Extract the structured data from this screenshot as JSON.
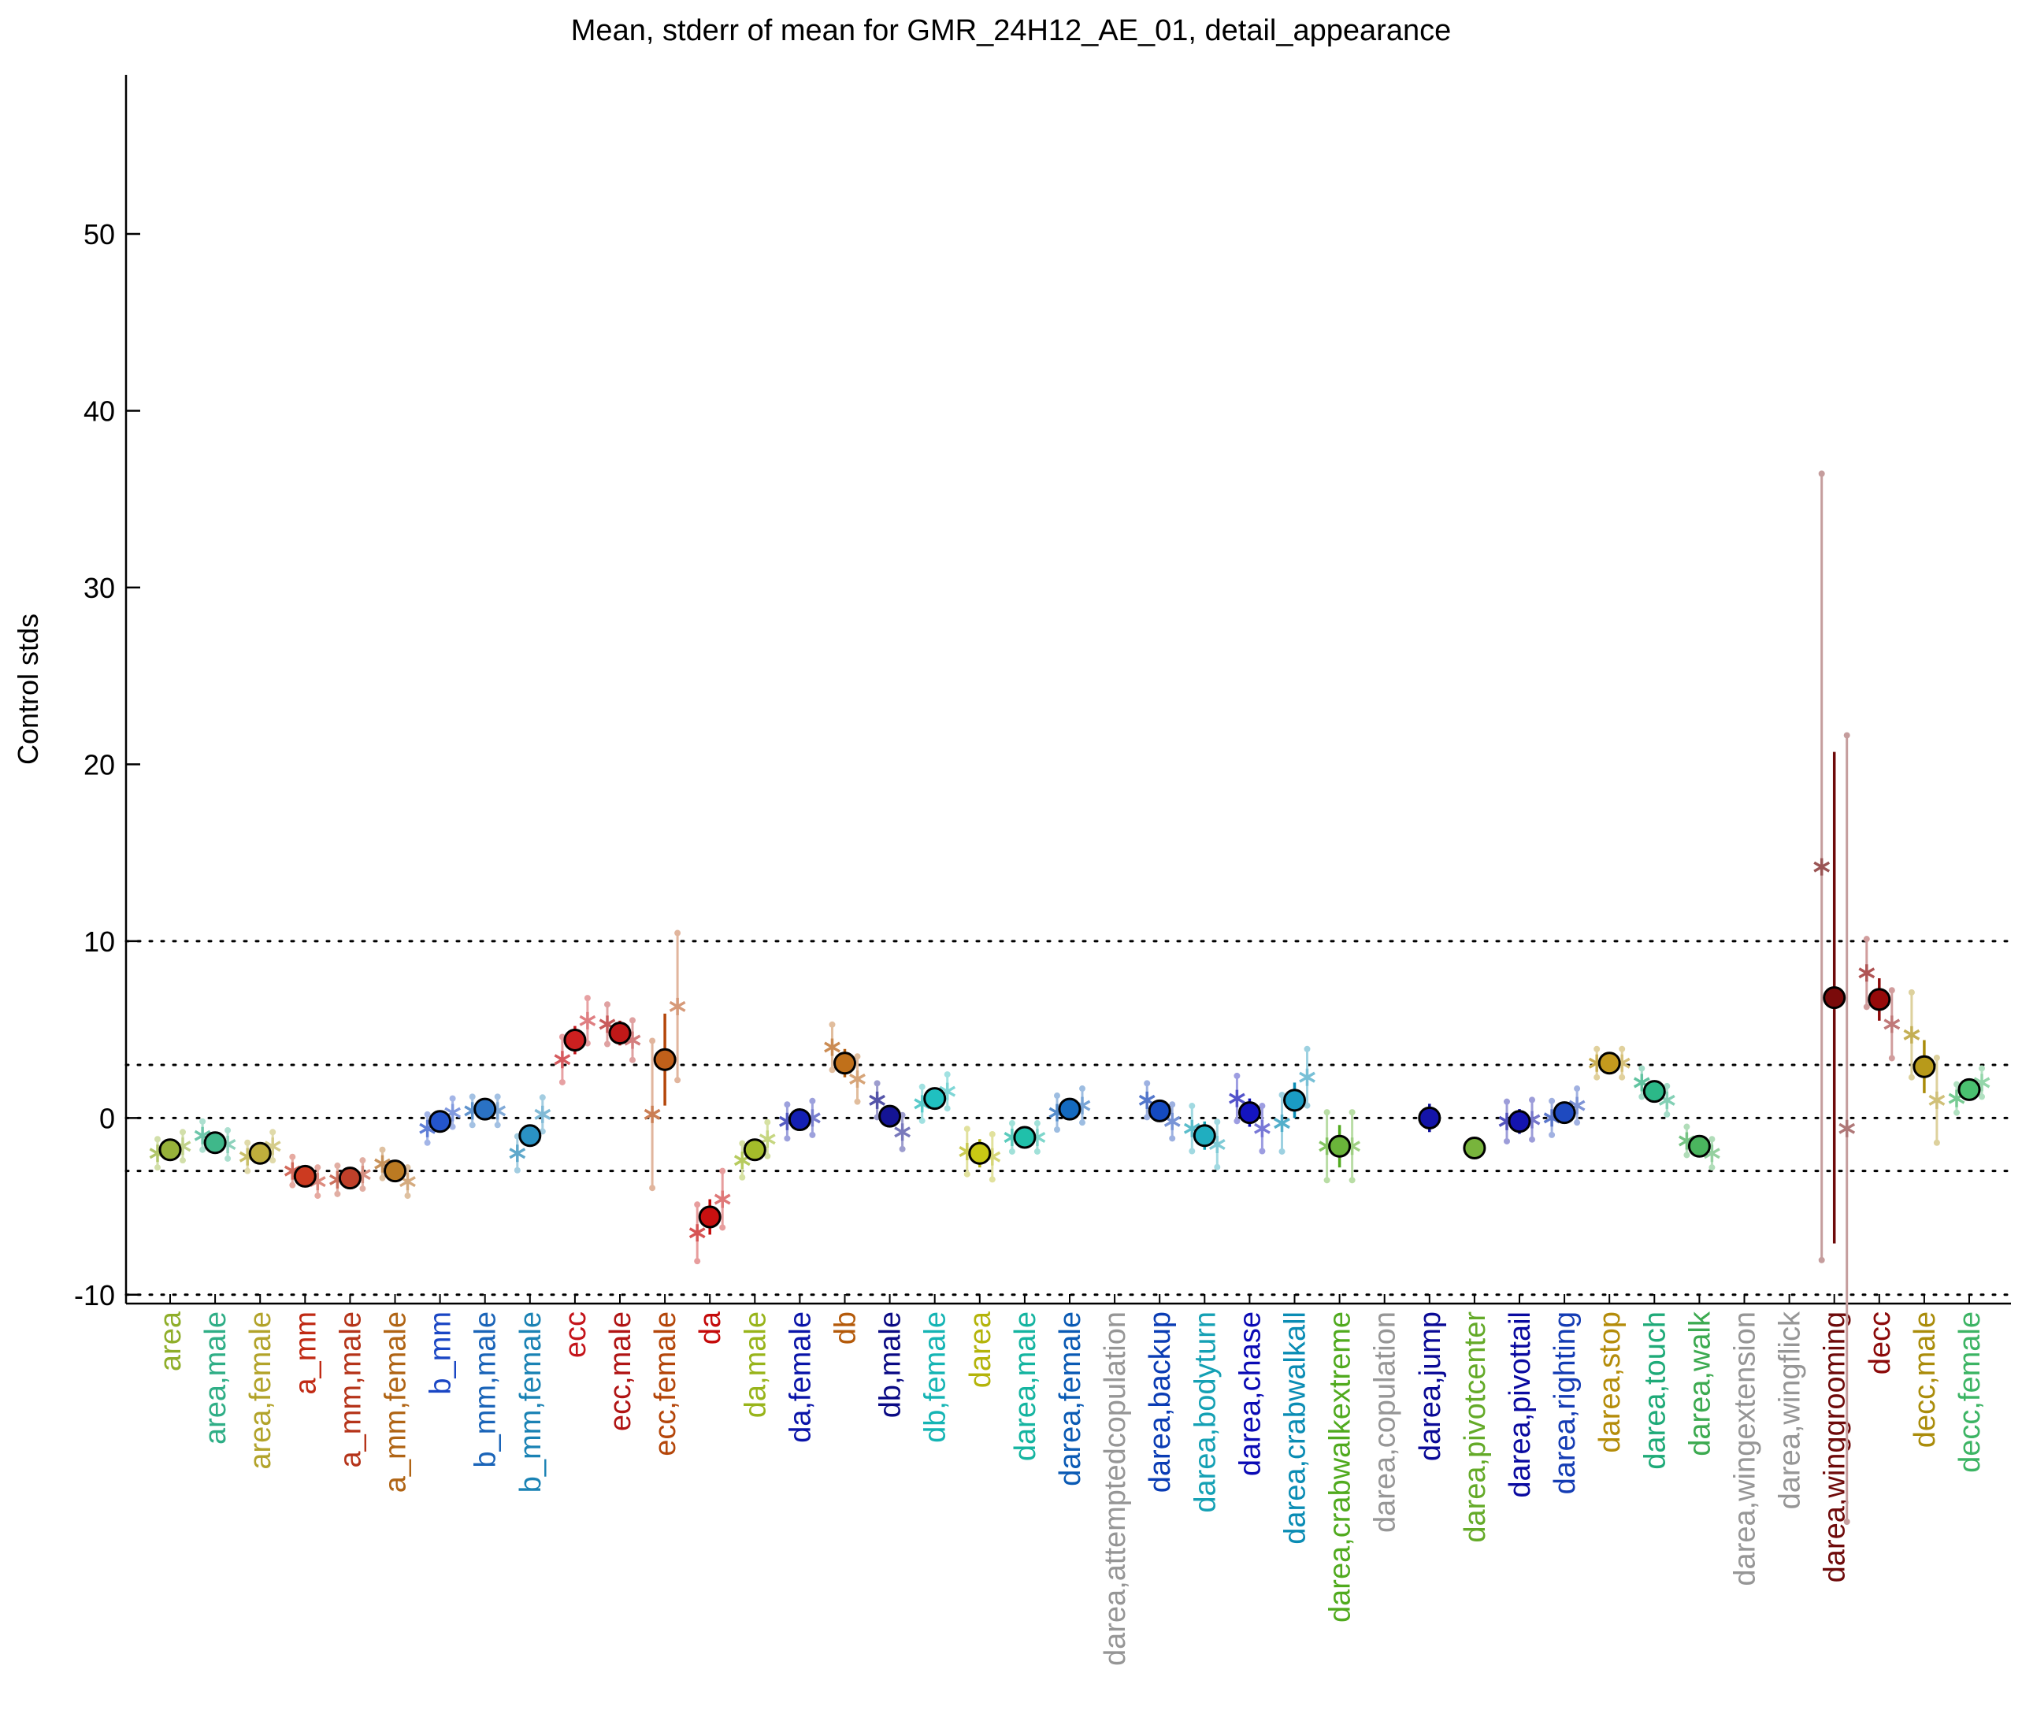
{
  "chart_data": {
    "type": "scatter",
    "title": "Mean, stderr of mean for GMR_24H12_AE_01, detail_appearance",
    "xlabel": "",
    "ylabel": "Control stds",
    "ylim": [
      -10.5,
      59
    ],
    "yticks": [
      -10,
      0,
      10,
      20,
      30,
      40,
      50
    ],
    "reference_lines": [
      -10,
      -3,
      0,
      3,
      10
    ],
    "grid": false,
    "categories": [
      {
        "label": "area",
        "color": "#8fae2a",
        "mean": -1.8,
        "se": 0.4,
        "fill": "#97b13a",
        "male": -2.0,
        "female": -1.6
      },
      {
        "label": "area,male",
        "color": "#2fae86",
        "mean": -1.4,
        "se": 0.5,
        "fill": "#3fb88a",
        "male": -1.0,
        "female": -1.5
      },
      {
        "label": "area,female",
        "color": "#b2a32a",
        "mean": -2.0,
        "se": 0.4,
        "fill": "#bfae3c",
        "male": -2.2,
        "female": -1.6
      },
      {
        "label": "a_mm",
        "color": "#c02a14",
        "mean": -3.3,
        "se": 0.4,
        "fill": "#cc3a20",
        "male": -3.0,
        "female": -3.6
      },
      {
        "label": "a_mm,male",
        "color": "#b5341a",
        "mean": -3.4,
        "se": 0.5,
        "fill": "#c0402a",
        "male": -3.5,
        "female": -3.2
      },
      {
        "label": "a_mm,female",
        "color": "#b06414",
        "mean": -3.0,
        "se": 0.4,
        "fill": "#bb7a22",
        "male": -2.6,
        "female": -3.6
      },
      {
        "label": "b_mm",
        "color": "#1a46c4",
        "mean": -0.2,
        "se": 0.5,
        "fill": "#2455cc",
        "male": -0.6,
        "female": 0.3
      },
      {
        "label": "b_mm,male",
        "color": "#1a64b8",
        "mean": 0.5,
        "se": 0.5,
        "fill": "#2a72c4",
        "male": 0.4,
        "female": 0.4
      },
      {
        "label": "b_mm,female",
        "color": "#1a82b4",
        "mean": -1.0,
        "se": 0.6,
        "fill": "#2a92c4",
        "male": -2.0,
        "female": 0.2
      },
      {
        "label": "ecc",
        "color": "#c4141a",
        "mean": 4.4,
        "se": 0.8,
        "fill": "#cc2020",
        "male": 3.3,
        "female": 5.5
      },
      {
        "label": "ecc,male",
        "color": "#b01414",
        "mean": 4.8,
        "se": 0.7,
        "fill": "#c01818",
        "male": 5.3,
        "female": 4.4
      },
      {
        "label": "ecc,female",
        "color": "#b4460a",
        "mean": 3.3,
        "se": 2.6,
        "fill": "#c0601a",
        "male": 0.2,
        "female": 6.3
      },
      {
        "label": "da",
        "color": "#c40a0a",
        "mean": -5.6,
        "se": 1.0,
        "fill": "#c81010",
        "male": -6.5,
        "female": -4.6
      },
      {
        "label": "da,male",
        "color": "#98b41a",
        "mean": -1.8,
        "se": 0.6,
        "fill": "#a4bc2a",
        "male": -2.4,
        "female": -1.2
      },
      {
        "label": "da,female",
        "color": "#0a14a8",
        "mean": -0.1,
        "se": 0.6,
        "fill": "#1420b4",
        "male": -0.2,
        "female": 0.0
      },
      {
        "label": "db",
        "color": "#b45a0a",
        "mean": 3.1,
        "se": 0.8,
        "fill": "#c0701a",
        "male": 4.0,
        "female": 2.2
      },
      {
        "label": "db,male",
        "color": "#0a0a84",
        "mean": 0.1,
        "se": 0.6,
        "fill": "#141494",
        "male": 1.0,
        "female": -0.8
      },
      {
        "label": "db,female",
        "color": "#14b4b4",
        "mean": 1.1,
        "se": 0.6,
        "fill": "#20c0c0",
        "male": 0.8,
        "female": 1.5
      },
      {
        "label": "darea",
        "color": "#b4b40a",
        "mean": -2.0,
        "se": 0.8,
        "fill": "#c8c814",
        "male": -1.9,
        "female": -2.2
      },
      {
        "label": "darea,male",
        "color": "#14b4a0",
        "mean": -1.1,
        "se": 0.5,
        "fill": "#20c0aa",
        "male": -1.1,
        "female": -1.1
      },
      {
        "label": "darea,female",
        "color": "#0a5ab4",
        "mean": 0.5,
        "se": 0.6,
        "fill": "#146ac0",
        "male": 0.3,
        "female": 0.7
      },
      {
        "label": "darea,attemptedcopulation",
        "color": "#969696",
        "mean": null,
        "se": null,
        "fill": "#969696",
        "male": null,
        "female": null
      },
      {
        "label": "darea,backup",
        "color": "#0a3cb4",
        "mean": 0.4,
        "se": 0.6,
        "fill": "#144ac0",
        "male": 1.0,
        "female": -0.2
      },
      {
        "label": "darea,bodyturn",
        "color": "#14a0b4",
        "mean": -1.0,
        "se": 0.8,
        "fill": "#20aec0",
        "male": -0.6,
        "female": -1.5
      },
      {
        "label": "darea,chase",
        "color": "#0a0ab4",
        "mean": 0.3,
        "se": 0.8,
        "fill": "#1414c0",
        "male": 1.1,
        "female": -0.6
      },
      {
        "label": "darea,crabwalkall",
        "color": "#0a8cb4",
        "mean": 1.0,
        "se": 1.0,
        "fill": "#1a9cc4",
        "male": -0.3,
        "female": 2.3
      },
      {
        "label": "darea,crabwalkextreme",
        "color": "#50aa1e",
        "mean": -1.6,
        "se": 1.2,
        "fill": "#6ab43a",
        "male": -1.6,
        "female": -1.6
      },
      {
        "label": "darea,copulation",
        "color": "#969696",
        "mean": null,
        "se": null,
        "fill": "#969696",
        "male": null,
        "female": null
      },
      {
        "label": "darea,jump",
        "color": "#0a0a96",
        "mean": 0.0,
        "se": 0.8,
        "fill": "#1414a8",
        "male": null,
        "female": null
      },
      {
        "label": "darea,pivotcenter",
        "color": "#64aa28",
        "mean": -1.7,
        "se": 0.0,
        "fill": "#78b43c",
        "male": null,
        "female": null
      },
      {
        "label": "darea,pivottail",
        "color": "#0a0aa0",
        "mean": -0.2,
        "se": 0.7,
        "fill": "#1414b0",
        "male": -0.2,
        "female": -0.1
      },
      {
        "label": "darea,righting",
        "color": "#143cb4",
        "mean": 0.3,
        "se": 0.6,
        "fill": "#1e4ac0",
        "male": 0.0,
        "female": 0.7
      },
      {
        "label": "darea,stop",
        "color": "#b48c0a",
        "mean": 3.1,
        "se": 0.3,
        "fill": "#c49a1e",
        "male": 3.1,
        "female": 3.1
      },
      {
        "label": "darea,touch",
        "color": "#1eaa78",
        "mean": 1.5,
        "se": 0.5,
        "fill": "#2cb888",
        "male": 2.0,
        "female": 1.0
      },
      {
        "label": "darea,walk",
        "color": "#3caa50",
        "mean": -1.6,
        "se": 0.4,
        "fill": "#4ab45e",
        "male": -1.3,
        "female": -2.0
      },
      {
        "label": "darea,wingextension",
        "color": "#969696",
        "mean": null,
        "se": null,
        "fill": "#969696",
        "male": null,
        "female": null
      },
      {
        "label": "darea,wingflick",
        "color": "#969696",
        "mean": null,
        "se": null,
        "fill": "#969696",
        "male": null,
        "female": null
      },
      {
        "label": "darea,winggrooming",
        "color": "#6e0a0a",
        "mean": 6.8,
        "se": 13.9,
        "fill": "#7a0a0a",
        "male": 14.2,
        "female": -0.6
      },
      {
        "label": "decc",
        "color": "#8c0a0a",
        "mean": 6.7,
        "se": 1.2,
        "fill": "#960a0a",
        "male": 8.2,
        "female": 5.3
      },
      {
        "label": "decc,male",
        "color": "#aa8c0a",
        "mean": 2.9,
        "se": 1.5,
        "fill": "#b89a1a",
        "male": 4.7,
        "female": 1.0
      },
      {
        "label": "decc,female",
        "color": "#3cb464",
        "mean": 1.6,
        "se": 0.4,
        "fill": "#4ac070",
        "male": 1.1,
        "female": 2.0
      }
    ]
  }
}
